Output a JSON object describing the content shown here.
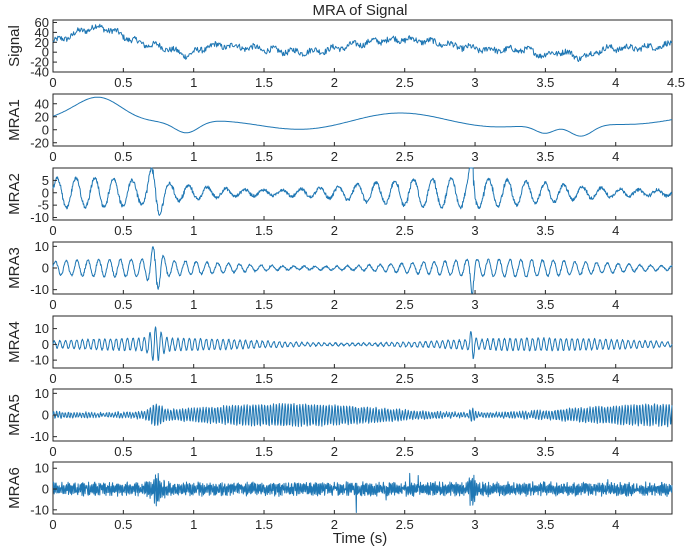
{
  "chart_data": [
    {
      "type": "line",
      "title": "MRA of Signal",
      "ylabel": "Signal",
      "xlim": [
        0,
        4.4
      ],
      "ylim": [
        -40,
        65
      ],
      "xticks": [
        0,
        0.5,
        1,
        1.5,
        2,
        2.5,
        3,
        3.5,
        4,
        4.5
      ],
      "xtick_labels": [
        "0",
        "0.5",
        "1",
        "1.5",
        "2",
        "2.5",
        "3",
        "3.5",
        "4",
        "4.5"
      ],
      "yticks": [
        60,
        40,
        20,
        0,
        -20,
        -40
      ],
      "ytick_labels": [
        "60",
        "40",
        "20",
        "0",
        "-20",
        "-40"
      ],
      "series_style": "raw",
      "color": "#1f77b4"
    },
    {
      "type": "line",
      "ylabel": "MRA1",
      "xlim": [
        0,
        4.4
      ],
      "ylim": [
        -25,
        55
      ],
      "xticks": [
        0,
        0.5,
        1,
        1.5,
        2,
        2.5,
        3,
        3.5,
        4
      ],
      "xtick_labels": [
        "0",
        "0.5",
        "1",
        "1.5",
        "2",
        "2.5",
        "3",
        "3.5",
        "4"
      ],
      "yticks": [
        40,
        20,
        0,
        -20
      ],
      "ytick_labels": [
        "40",
        "20",
        "0",
        "-20"
      ],
      "series_style": "trend",
      "color": "#1f77b4"
    },
    {
      "type": "line",
      "ylabel": "MRA2",
      "xlim": [
        0,
        4.4
      ],
      "ylim": [
        -11,
        10
      ],
      "xticks": [
        0,
        0.5,
        1,
        1.5,
        2,
        2.5,
        3,
        3.5,
        4
      ],
      "xtick_labels": [
        "0",
        "0.5",
        "1",
        "1.5",
        "2",
        "2.5",
        "3",
        "3.5",
        "4"
      ],
      "yticks": [
        5,
        0,
        -5,
        -10
      ],
      "ytick_labels": [
        "5",
        "0",
        "-5",
        "-10"
      ],
      "series_style": "osc",
      "freq": 7.5,
      "amp": 6,
      "color": "#1f77b4"
    },
    {
      "type": "line",
      "ylabel": "MRA3",
      "xlim": [
        0,
        4.4
      ],
      "ylim": [
        -12,
        12
      ],
      "xticks": [
        0,
        0.5,
        1,
        1.5,
        2,
        2.5,
        3,
        3.5,
        4
      ],
      "xtick_labels": [
        "0",
        "0.5",
        "1",
        "1.5",
        "2",
        "2.5",
        "3",
        "3.5",
        "4"
      ],
      "yticks": [
        10,
        0,
        -10
      ],
      "ytick_labels": [
        "10",
        "0",
        "-10"
      ],
      "series_style": "osc",
      "freq": 13,
      "amp": 4,
      "color": "#1f77b4"
    },
    {
      "type": "line",
      "ylabel": "MRA4",
      "xlim": [
        0,
        4.4
      ],
      "ylim": [
        -15,
        18
      ],
      "xticks": [
        0,
        0.5,
        1,
        1.5,
        2,
        2.5,
        3,
        3.5,
        4
      ],
      "xtick_labels": [
        "0",
        "0.5",
        "1",
        "1.5",
        "2",
        "2.5",
        "3",
        "3.5",
        "4"
      ],
      "yticks": [
        10,
        0,
        -10
      ],
      "ytick_labels": [
        "10",
        "0",
        "-10"
      ],
      "series_style": "osc",
      "freq": 25,
      "amp": 4,
      "color": "#1f77b4"
    },
    {
      "type": "line",
      "ylabel": "MRA5",
      "xlim": [
        0,
        4.4
      ],
      "ylim": [
        -12,
        12
      ],
      "xticks": [
        0,
        0.5,
        1,
        1.5,
        2,
        2.5,
        3,
        3.5,
        4
      ],
      "xtick_labels": [
        "0",
        "0.5",
        "1",
        "1.5",
        "2",
        "2.5",
        "3",
        "3.5",
        "4"
      ],
      "yticks": [
        10,
        0,
        -10
      ],
      "ytick_labels": [
        "10",
        "0",
        "-10"
      ],
      "series_style": "osc",
      "freq": 48,
      "amp": 5,
      "color": "#1f77b4"
    },
    {
      "type": "line",
      "ylabel": "MRA6",
      "xlim": [
        0,
        4.4
      ],
      "ylim": [
        -12,
        13
      ],
      "xticks": [
        0,
        0.5,
        1,
        1.5,
        2,
        2.5,
        3,
        3.5,
        4
      ],
      "xtick_labels": [
        "0",
        "0.5",
        "1",
        "1.5",
        "2",
        "2.5",
        "3",
        "3.5",
        "4"
      ],
      "yticks": [
        10,
        0,
        -10
      ],
      "ytick_labels": [
        "10",
        "0",
        "-10"
      ],
      "series_style": "noise",
      "freq": 95,
      "amp": 3,
      "xlabel": "Time (s)",
      "color": "#1f77b4"
    }
  ]
}
